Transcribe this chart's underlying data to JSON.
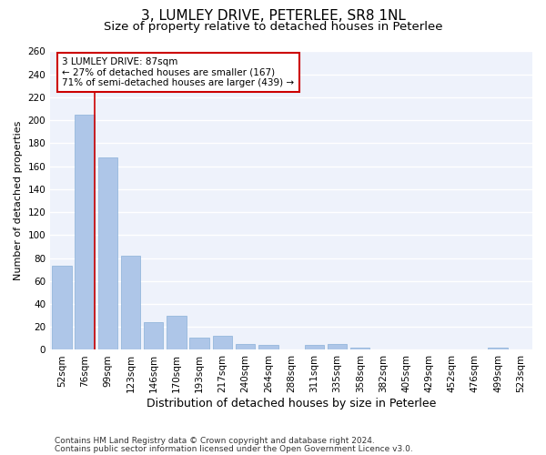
{
  "title1": "3, LUMLEY DRIVE, PETERLEE, SR8 1NL",
  "title2": "Size of property relative to detached houses in Peterlee",
  "xlabel": "Distribution of detached houses by size in Peterlee",
  "ylabel": "Number of detached properties",
  "footnote1": "Contains HM Land Registry data © Crown copyright and database right 2024.",
  "footnote2": "Contains public sector information licensed under the Open Government Licence v3.0.",
  "categories": [
    "52sqm",
    "76sqm",
    "99sqm",
    "123sqm",
    "146sqm",
    "170sqm",
    "193sqm",
    "217sqm",
    "240sqm",
    "264sqm",
    "288sqm",
    "311sqm",
    "335sqm",
    "358sqm",
    "382sqm",
    "405sqm",
    "429sqm",
    "452sqm",
    "476sqm",
    "499sqm",
    "523sqm"
  ],
  "values": [
    73,
    205,
    168,
    82,
    24,
    30,
    11,
    12,
    5,
    4,
    0,
    4,
    5,
    2,
    0,
    0,
    0,
    0,
    0,
    2,
    0
  ],
  "bar_color": "#aec6e8",
  "bar_edge_color": "#8ab0d8",
  "annotation_text": "3 LUMLEY DRIVE: 87sqm\n← 27% of detached houses are smaller (167)\n71% of semi-detached houses are larger (439) →",
  "annotation_box_color": "#ffffff",
  "annotation_box_edge": "#cc0000",
  "vline_color": "#cc0000",
  "ylim": [
    0,
    260
  ],
  "yticks": [
    0,
    20,
    40,
    60,
    80,
    100,
    120,
    140,
    160,
    180,
    200,
    220,
    240,
    260
  ],
  "background_color": "#eef2fb",
  "grid_color": "#ffffff",
  "title1_fontsize": 11,
  "title2_fontsize": 9.5,
  "xlabel_fontsize": 9,
  "ylabel_fontsize": 8,
  "footnote_fontsize": 6.5,
  "tick_fontsize": 7.5,
  "annot_fontsize": 7.5
}
